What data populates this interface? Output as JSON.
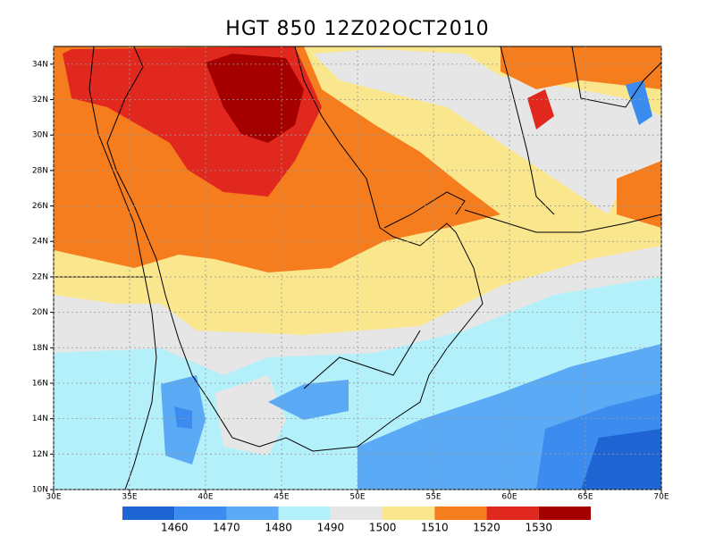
{
  "title": "HGT 850 12Z02OCT2010",
  "map": {
    "lonlim": [
      30,
      70
    ],
    "latlim": [
      10,
      35
    ],
    "lon_ticks": [
      {
        "value": 30,
        "label": "30E"
      },
      {
        "value": 35,
        "label": "35E"
      },
      {
        "value": 40,
        "label": "40E"
      },
      {
        "value": 45,
        "label": "45E"
      },
      {
        "value": 50,
        "label": "50E"
      },
      {
        "value": 55,
        "label": "55E"
      },
      {
        "value": 60,
        "label": "60E"
      },
      {
        "value": 65,
        "label": "65E"
      },
      {
        "value": 70,
        "label": "70E"
      }
    ],
    "lat_ticks": [
      {
        "value": 10,
        "label": "10N"
      },
      {
        "value": 12,
        "label": "12N"
      },
      {
        "value": 14,
        "label": "14N"
      },
      {
        "value": 16,
        "label": "16N"
      },
      {
        "value": 18,
        "label": "18N"
      },
      {
        "value": 20,
        "label": "20N"
      },
      {
        "value": 22,
        "label": "22N"
      },
      {
        "value": 24,
        "label": "24N"
      },
      {
        "value": 26,
        "label": "26N"
      },
      {
        "value": 28,
        "label": "28N"
      },
      {
        "value": 30,
        "label": "30N"
      },
      {
        "value": 32,
        "label": "32N"
      },
      {
        "value": 34,
        "label": "34N"
      }
    ]
  },
  "colorbar": {
    "levels": [
      1460,
      1470,
      1480,
      1490,
      1500,
      1510,
      1520,
      1530
    ],
    "colors": [
      "#1e64d2",
      "#3c8cf0",
      "#5aaaf5",
      "#b4f0fa",
      "#e6e6e6",
      "#fae68c",
      "#f57d1e",
      "#e1281e",
      "#a50000"
    ]
  }
}
